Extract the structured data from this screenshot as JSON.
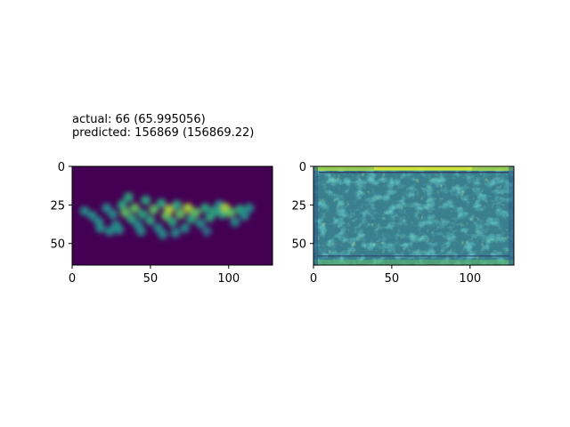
{
  "title": {
    "line1": "actual: 66 (65.995056)",
    "line2": "predicted: 156869 (156869.22)"
  },
  "chart_data": [
    {
      "type": "heatmap",
      "name": "actual density map",
      "colormap": "viridis",
      "x_range": [
        0,
        128
      ],
      "y_range": [
        0,
        64
      ],
      "y_inverted": true,
      "x_ticks": [
        "0",
        "50",
        "100"
      ],
      "y_ticks": [
        "0",
        "25",
        "50"
      ],
      "x_tick_values": [
        0,
        50,
        100
      ],
      "y_tick_values": [
        0,
        25,
        50
      ],
      "grid": false
    },
    {
      "type": "heatmap",
      "name": "predicted density map",
      "colormap": "viridis",
      "x_range": [
        0,
        128
      ],
      "y_range": [
        0,
        64
      ],
      "y_inverted": true,
      "x_ticks": [
        "0",
        "50",
        "100"
      ],
      "y_ticks": [
        "0",
        "25",
        "50"
      ],
      "x_tick_values": [
        0,
        50,
        100
      ],
      "y_tick_values": [
        0,
        25,
        50
      ],
      "grid": false
    }
  ]
}
